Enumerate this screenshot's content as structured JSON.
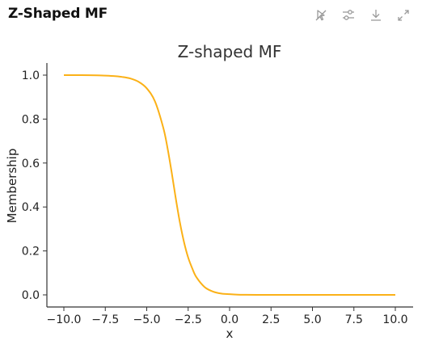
{
  "panel": {
    "title": "Z-Shaped MF",
    "toolbar": [
      {
        "icon": "pointer-off-icon",
        "label": ""
      },
      {
        "icon": "sliders-icon",
        "label": ""
      },
      {
        "icon": "download-icon",
        "label": ""
      },
      {
        "icon": "expand-icon",
        "label": ""
      }
    ]
  },
  "colors": {
    "line": "#fbb117",
    "axis": "#333333",
    "text": "#222222",
    "title": "#333333"
  },
  "chart_data": {
    "type": "line",
    "title": "Z-shaped MF",
    "xlabel": "x",
    "ylabel": "Membership",
    "xlim": [
      -10.0,
      10.0
    ],
    "ylim": [
      0.0,
      1.0
    ],
    "grid": false,
    "xticks": [
      -10.0,
      -7.5,
      -5.0,
      -2.5,
      0.0,
      2.5,
      5.0,
      7.5,
      10.0
    ],
    "xtick_labels": [
      "−10.0",
      "−7.5",
      "−5.0",
      "−2.5",
      "0.0",
      "2.5",
      "5.0",
      "7.5",
      "10.0"
    ],
    "yticks": [
      0.0,
      0.2,
      0.4,
      0.6,
      0.8,
      1.0
    ],
    "ytick_labels": [
      "0.0",
      "0.2",
      "0.4",
      "0.6",
      "0.8",
      "1.0"
    ],
    "series": [
      {
        "x": [
          -10,
          -9,
          -8,
          -7,
          -6.5,
          -6,
          -5.5,
          -5,
          -4.5,
          -4,
          -3.75,
          -3.5,
          -3.25,
          -3,
          -2.75,
          -2.5,
          -2.25,
          -2,
          -1.5,
          -1,
          -0.5,
          0,
          0.5,
          1,
          2,
          3,
          5,
          7.5,
          10
        ],
        "y": [
          1.0,
          1.0,
          0.999,
          0.996,
          0.992,
          0.985,
          0.97,
          0.94,
          0.88,
          0.76,
          0.67,
          0.56,
          0.44,
          0.33,
          0.24,
          0.17,
          0.12,
          0.08,
          0.035,
          0.015,
          0.006,
          0.003,
          0.001,
          0.0005,
          0.0,
          0.0,
          0.0,
          0.0,
          0.0
        ]
      }
    ]
  }
}
